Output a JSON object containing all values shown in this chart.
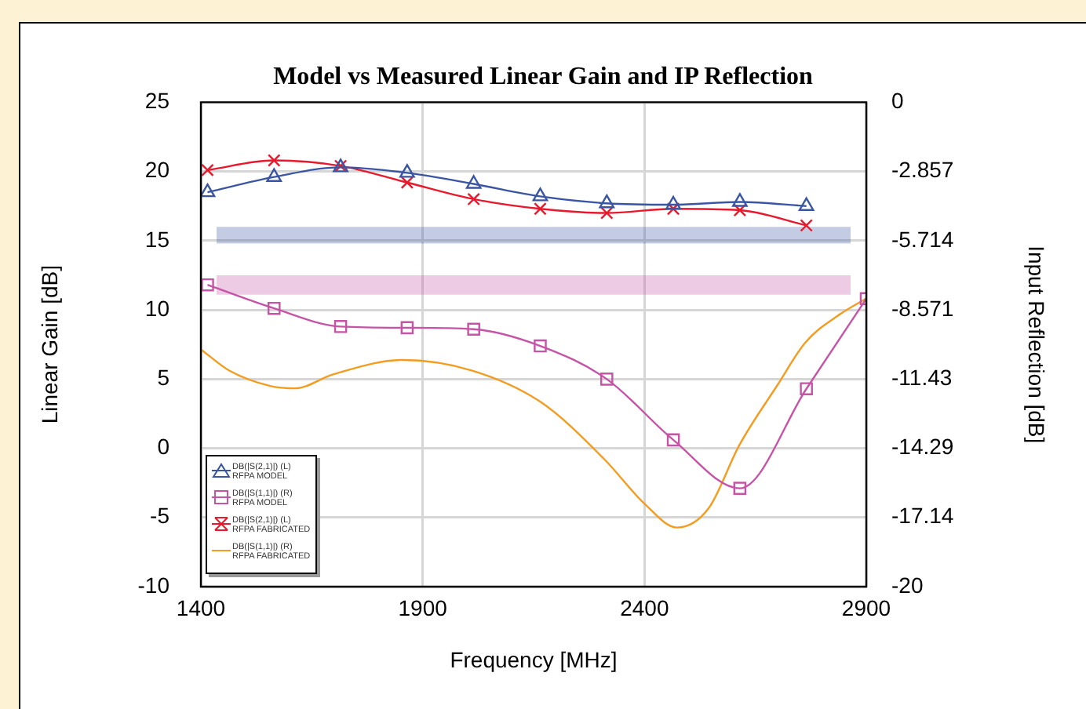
{
  "chart_data": {
    "type": "line",
    "title": "Model vs Measured Linear Gain and IP Reflection",
    "xlabel": "Frequency [MHz]",
    "ylabel": "Linear Gain [dB]",
    "y2label": "Input Reflection [dB]",
    "xlim": [
      1400,
      2900
    ],
    "xticks": [
      1400,
      1900,
      2400,
      2900
    ],
    "ylim": [
      -10,
      25
    ],
    "yticks": [
      -10,
      -5,
      0,
      5,
      10,
      15,
      20,
      25
    ],
    "y2lim": [
      -20,
      0
    ],
    "y2ticks": [
      -20,
      -17.14,
      -14.29,
      -11.43,
      -8.571,
      -5.714,
      -2.857,
      0
    ],
    "grid": true,
    "legend": "bottom left",
    "line_style": "solid",
    "series": [
      {
        "name": "DB(|S(2,1)|) (L)\nRFPA MODEL",
        "color": "#3a55a4",
        "marker": "triangle",
        "x": [
          1415,
          1565,
          1715,
          1865,
          2015,
          2165,
          2315,
          2465,
          2615,
          2765
        ],
        "values": [
          18.5,
          19.6,
          20.3,
          19.9,
          19.1,
          18.2,
          17.7,
          17.6,
          17.8,
          17.5
        ]
      },
      {
        "name": "DB(|S(1,1)|) (R)\nRFPA MODEL",
        "color": "#c653a6",
        "marker": "square",
        "axis": "y2",
        "x": [
          1415,
          1565,
          1715,
          1865,
          2015,
          2165,
          2315,
          2465,
          2615,
          2765,
          2900
        ],
        "values": [
          -7.54,
          -8.51,
          -9.26,
          -9.31,
          -9.37,
          -10.06,
          -11.43,
          -13.94,
          -15.94,
          -11.83,
          -8.11
        ]
      },
      {
        "name": "DB(|S(2,1)|) (L)\nRFPA FABRICATED",
        "color": "#e8192c",
        "marker": "cross",
        "x": [
          1415,
          1565,
          1715,
          1865,
          2015,
          2165,
          2315,
          2465,
          2615,
          2765
        ],
        "values": [
          20.1,
          20.8,
          20.4,
          19.2,
          18.0,
          17.3,
          17.0,
          17.3,
          17.2,
          16.1
        ]
      },
      {
        "name": "DB(|S(1,1)|) (R)\nRFPA FABRICATED",
        "color": "#f39c1f",
        "marker": "none",
        "axis": "y2",
        "x": [
          1400,
          1464,
          1558,
          1612,
          1699,
          1855,
          2012,
          2168,
          2309,
          2403,
          2473,
          2544,
          2614,
          2700,
          2763,
          2841,
          2900
        ],
        "values": [
          -10.2,
          -11.08,
          -11.72,
          -11.81,
          -11.23,
          -10.64,
          -11.08,
          -12.4,
          -14.73,
          -16.63,
          -17.56,
          -16.78,
          -14.15,
          -11.67,
          -9.91,
          -8.75,
          -8.1
        ]
      }
    ],
    "bands": [
      {
        "axis": "y",
        "from": 14.8,
        "to": 16,
        "color": "#3a55a4"
      },
      {
        "axis": "y",
        "from": 11.1,
        "to": 12.5,
        "color": "#c653a6"
      }
    ]
  }
}
